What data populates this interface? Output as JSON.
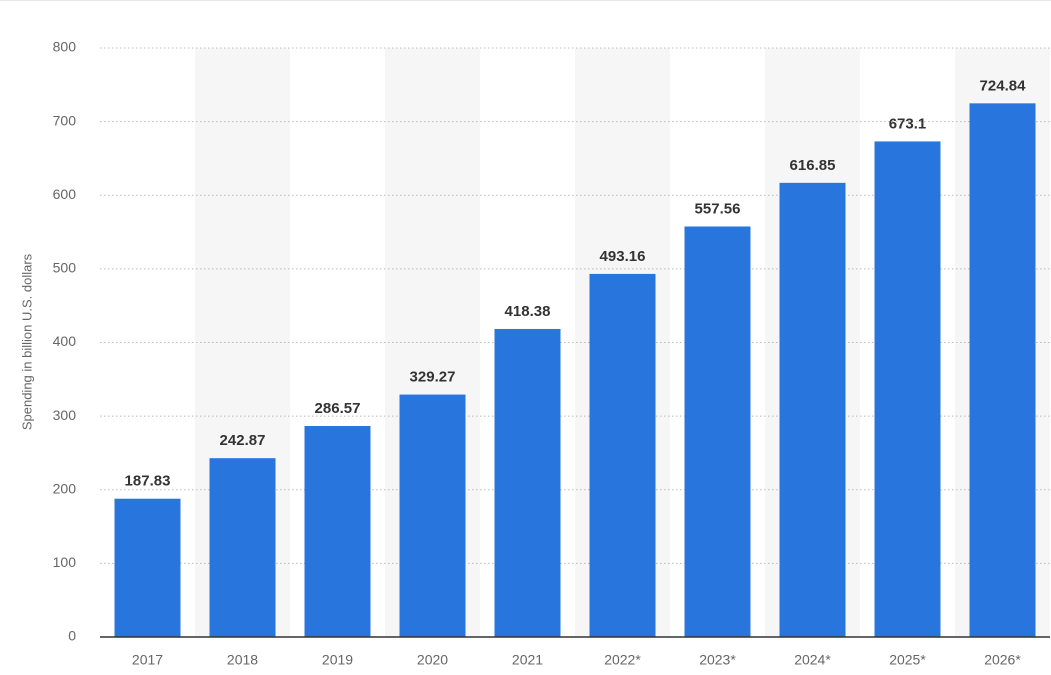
{
  "chart_data": {
    "type": "bar",
    "y_label": "Spending in billion U.S. dollars",
    "categories": [
      "2017",
      "2018",
      "2019",
      "2020",
      "2021",
      "2022*",
      "2023*",
      "2024*",
      "2025*",
      "2026*"
    ],
    "values": [
      187.83,
      242.87,
      286.57,
      329.27,
      418.38,
      493.16,
      557.56,
      616.85,
      673.1,
      724.84
    ],
    "color": "#2876dd",
    "ylim": [
      0,
      800
    ],
    "yticks": [
      0,
      100,
      200,
      300,
      400,
      500,
      600,
      700,
      800
    ],
    "grid": true
  }
}
